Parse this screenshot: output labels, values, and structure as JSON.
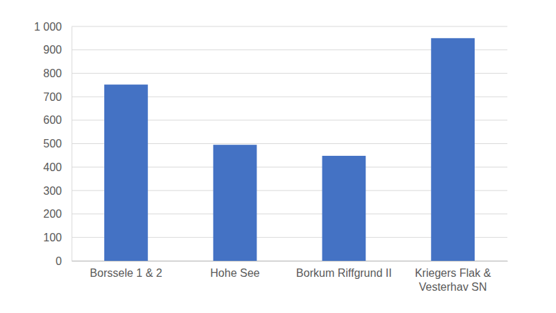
{
  "chart_data": {
    "type": "bar",
    "categories": [
      "Borssele 1 & 2",
      "Hohe See",
      "Borkum Riffgrund II",
      "Kriegers Flak & Vesterhav SN"
    ],
    "values": [
      752,
      495,
      448,
      950
    ],
    "color": "#4472c4",
    "ylim": [
      0,
      1000
    ],
    "yticks": [
      0,
      100,
      200,
      300,
      400,
      500,
      600,
      700,
      800,
      900,
      {
        "value": 1000,
        "label": "1 000"
      }
    ],
    "grid": true
  }
}
